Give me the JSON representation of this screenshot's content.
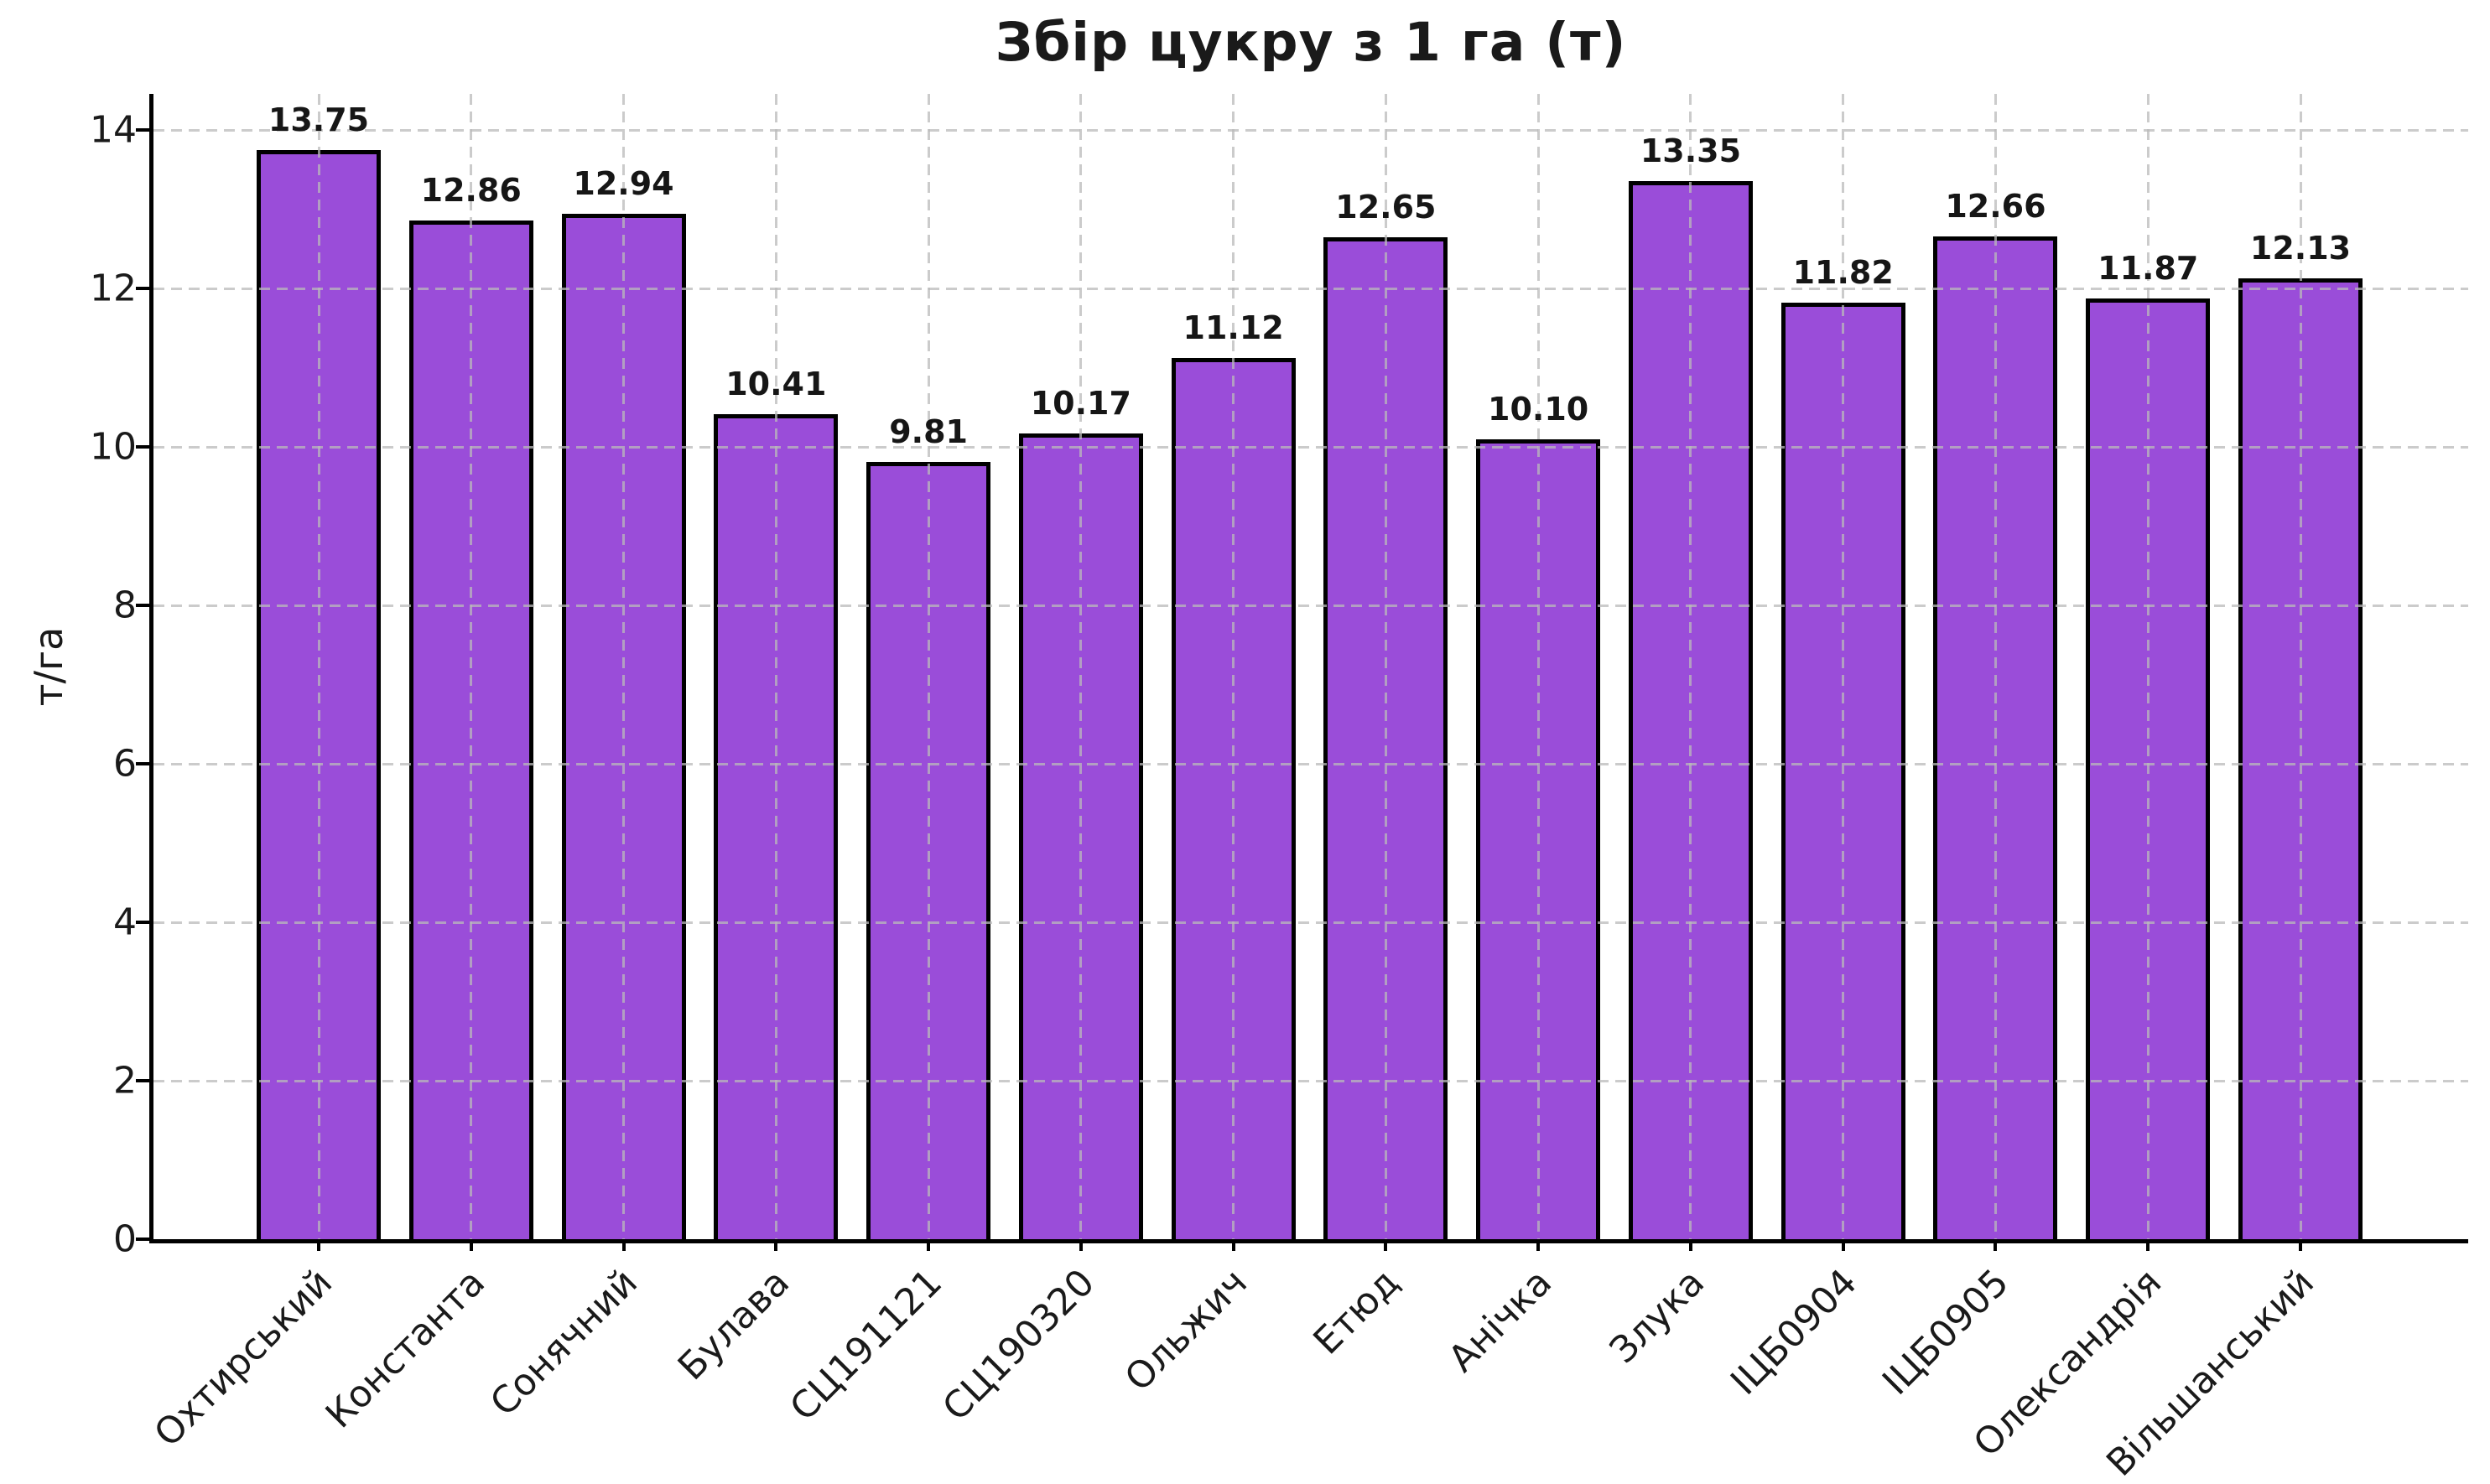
{
  "chart_data": {
    "type": "bar",
    "title": "Збір цукру з 1 га (т)",
    "ylabel": "т/га",
    "categories": [
      "Охтирський",
      "Константа",
      "Сонячний",
      "Булава",
      "СЦ191121",
      "СЦ190320",
      "Ольжич",
      "Етюд",
      "Анічка",
      "Злука",
      "ІЦБ0904",
      "ІЦБ0905",
      "Олександрія",
      "Вільшанський"
    ],
    "values": [
      13.75,
      12.86,
      12.94,
      10.41,
      9.81,
      10.17,
      11.12,
      12.65,
      10.1,
      13.35,
      11.82,
      12.66,
      11.87,
      12.13
    ],
    "bar_labels": [
      "13.75",
      "12.86",
      "12.94",
      "10.41",
      "9.81",
      "10.17",
      "11.12",
      "12.65",
      "10.10",
      "13.35",
      "11.82",
      "12.66",
      "11.87",
      "12.13"
    ],
    "ytick_values": [
      0,
      2,
      4,
      6,
      8,
      10,
      12,
      14
    ],
    "ytick_labels": [
      "0",
      "2",
      "4",
      "6",
      "8",
      "10",
      "12",
      "14"
    ],
    "ylim": [
      0,
      14.46
    ],
    "grid": "dashed, horizontal and vertical, drawn over bars",
    "legend": "none",
    "bar_color": "#9a4dd9",
    "bar_edge_color": "#000000",
    "grid_color": "#bababa",
    "text_color": "#1a1a1a",
    "background_color": "#ffffff",
    "xtick_rotation_deg": 45
  }
}
